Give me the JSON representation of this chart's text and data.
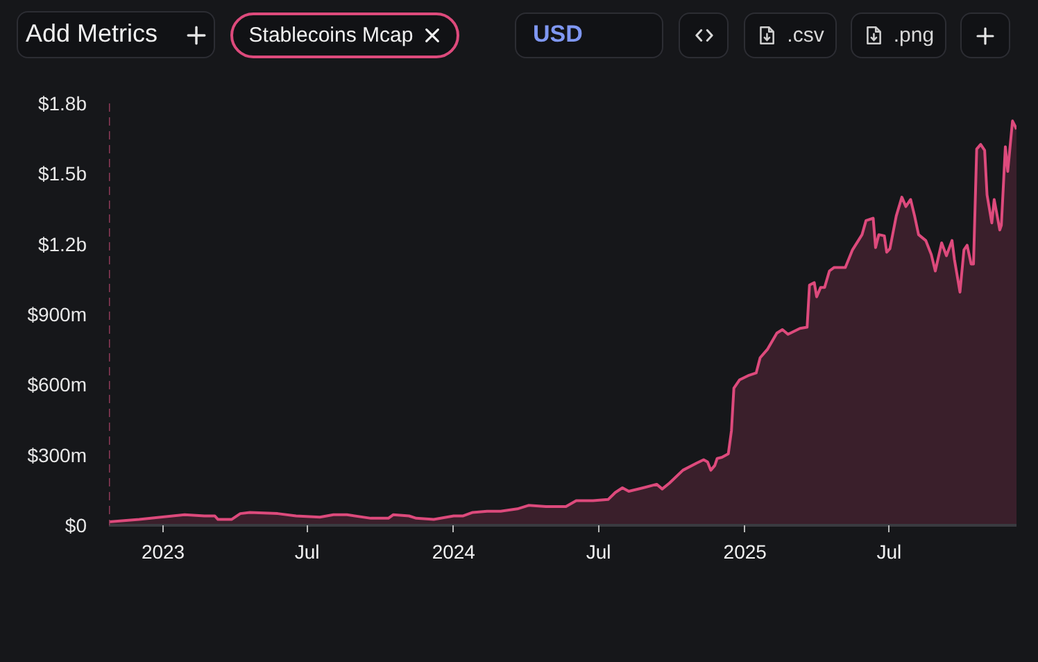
{
  "chart_data": {
    "type": "area",
    "annotations": [
      "Add Metrics",
      "USD",
      ".csv",
      ".png"
    ],
    "legend": "top left",
    "line_style": "solid",
    "x": [
      "2022-10-25",
      "2022-12-02",
      "2023-01-28",
      "2023-02-22",
      "2023-03-07",
      "2023-03-11",
      "2023-03-28",
      "2023-04-08",
      "2023-04-20",
      "2023-05-25",
      "2023-06-17",
      "2023-07-17",
      "2023-08-03",
      "2023-08-20",
      "2023-09-19",
      "2023-10-11",
      "2023-10-17",
      "2023-11-06",
      "2023-11-15",
      "2023-12-07",
      "2024-01-01",
      "2024-01-13",
      "2024-01-25",
      "2024-02-12",
      "2024-02-29",
      "2024-03-21",
      "2024-04-04",
      "2024-04-26",
      "2024-05-21",
      "2024-06-03",
      "2024-06-24",
      "2024-07-13",
      "2024-07-22",
      "2024-07-31",
      "2024-08-08",
      "2024-08-26",
      "2024-09-12",
      "2024-09-19",
      "2024-09-28",
      "2024-10-15",
      "2024-11-01",
      "2024-11-10",
      "2024-11-15",
      "2024-11-19",
      "2024-11-24",
      "2024-11-27",
      "2024-12-03",
      "2024-12-11",
      "2024-12-15",
      "2024-12-18",
      "2024-12-25",
      "2025-01-06",
      "2025-01-15",
      "2025-01-20",
      "2025-01-29",
      "2025-02-10",
      "2025-02-17",
      "2025-02-24",
      "2025-03-11",
      "2025-03-20",
      "2025-03-23",
      "2025-03-29",
      "2025-04-01",
      "2025-04-06",
      "2025-04-11",
      "2025-04-17",
      "2025-04-23",
      "2025-05-07",
      "2025-05-16",
      "2025-05-28",
      "2025-06-02",
      "2025-06-11",
      "2025-06-14",
      "2025-06-18",
      "2025-06-25",
      "2025-06-28",
      "2025-07-02",
      "2025-07-10",
      "2025-07-17",
      "2025-07-22",
      "2025-07-28",
      "2025-08-02",
      "2025-08-07",
      "2025-08-16",
      "2025-08-23",
      "2025-08-28",
      "2025-09-05",
      "2025-09-11",
      "2025-09-18",
      "2025-09-21",
      "2025-09-28",
      "2025-10-03",
      "2025-10-07",
      "2025-10-12",
      "2025-10-15",
      "2025-10-19",
      "2025-10-24",
      "2025-10-29",
      "2025-11-01",
      "2025-11-07",
      "2025-11-10",
      "2025-11-17",
      "2025-11-19",
      "2025-11-24",
      "2025-11-27",
      "2025-12-03",
      "2025-12-06",
      "2025-12-08"
    ],
    "series": [
      {
        "name": "Stablecoins Mcap",
        "color": "#dd4a7c",
        "values": [
          15000000,
          25000000,
          45000000,
          40000000,
          40000000,
          25000000,
          25000000,
          50000000,
          55000000,
          50000000,
          40000000,
          35000000,
          45000000,
          45000000,
          30000000,
          30000000,
          45000000,
          40000000,
          30000000,
          25000000,
          40000000,
          40000000,
          55000000,
          60000000,
          60000000,
          70000000,
          85000000,
          80000000,
          80000000,
          105000000,
          105000000,
          110000000,
          140000000,
          160000000,
          145000000,
          160000000,
          175000000,
          155000000,
          180000000,
          235000000,
          265000000,
          280000000,
          270000000,
          235000000,
          255000000,
          285000000,
          290000000,
          305000000,
          405000000,
          585000000,
          620000000,
          640000000,
          650000000,
          715000000,
          750000000,
          820000000,
          835000000,
          815000000,
          840000000,
          845000000,
          1025000000,
          1035000000,
          975000000,
          1015000000,
          1015000000,
          1085000000,
          1100000000,
          1100000000,
          1175000000,
          1240000000,
          1300000000,
          1310000000,
          1185000000,
          1240000000,
          1235000000,
          1165000000,
          1180000000,
          1320000000,
          1400000000,
          1360000000,
          1390000000,
          1320000000,
          1240000000,
          1215000000,
          1155000000,
          1085000000,
          1205000000,
          1150000000,
          1215000000,
          1135000000,
          995000000,
          1175000000,
          1195000000,
          1115000000,
          1115000000,
          1605000000,
          1625000000,
          1600000000,
          1410000000,
          1290000000,
          1390000000,
          1260000000,
          1280000000,
          1615000000,
          1510000000,
          1725000000,
          1705000000,
          1690000000
        ]
      }
    ],
    "xlim": [
      "2022-10-25",
      "2025-12-08"
    ],
    "xticks": [
      {
        "value": "2023-01",
        "label": "2023"
      },
      {
        "value": "2023-07",
        "label": "Jul"
      },
      {
        "value": "2024-01",
        "label": "2024"
      },
      {
        "value": "2024-07",
        "label": "Jul"
      },
      {
        "value": "2025-01",
        "label": "2025"
      },
      {
        "value": "2025-07",
        "label": "Jul"
      }
    ],
    "ylim": [
      0,
      1800000000
    ],
    "yticks": [
      {
        "value": 0,
        "label": "$0"
      },
      {
        "value": 300000000,
        "label": "$300m"
      },
      {
        "value": 600000000,
        "label": "$600m"
      },
      {
        "value": 900000000,
        "label": "$900m"
      },
      {
        "value": 1200000000,
        "label": "$1.2b"
      },
      {
        "value": 1500000000,
        "label": "$1.5b"
      },
      {
        "value": 1800000000,
        "label": "$1.8b"
      }
    ],
    "ref_lines": [
      {
        "axis": "x",
        "value": "2022-10-25",
        "color": "#8e3a58",
        "line_style": "dashed"
      }
    ]
  }
}
